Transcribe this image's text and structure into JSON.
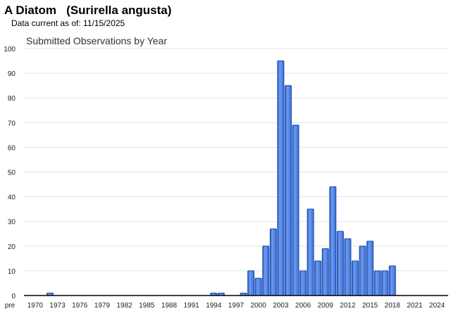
{
  "header": {
    "title": "A Diatom   (Surirella angusta)",
    "data_current": "Data current as of: 11/15/2025"
  },
  "chart_data": {
    "type": "bar",
    "title": "Submitted Observations by Year",
    "xlabel": "",
    "ylabel": "",
    "ylim": [
      0,
      100
    ],
    "yticks": [
      0,
      10,
      20,
      30,
      40,
      50,
      60,
      70,
      80,
      90,
      100
    ],
    "grid": true,
    "categories": [
      "pre",
      1970,
      1971,
      1972,
      1973,
      1974,
      1975,
      1976,
      1977,
      1978,
      1979,
      1980,
      1981,
      1982,
      1983,
      1984,
      1985,
      1986,
      1987,
      1988,
      1989,
      1990,
      1991,
      1992,
      1993,
      1994,
      1995,
      1996,
      1997,
      1998,
      1999,
      2000,
      2001,
      2002,
      2003,
      2004,
      2005,
      2006,
      2007,
      2008,
      2009,
      2010,
      2011,
      2012,
      2013,
      2014,
      2015,
      2016,
      2017,
      2018,
      2019,
      2020,
      2021,
      2022,
      2023,
      2024,
      2025
    ],
    "values": [
      0,
      0,
      0,
      1,
      0,
      0,
      0,
      0,
      0,
      0,
      0,
      0,
      0,
      0,
      0,
      0,
      0,
      0,
      0,
      0,
      0,
      0,
      0,
      0,
      0,
      1,
      1,
      0,
      0,
      1,
      10,
      7,
      20,
      27,
      95,
      85,
      69,
      10,
      35,
      14,
      19,
      44,
      26,
      23,
      14,
      20,
      22,
      10,
      10,
      12,
      0,
      0,
      0,
      0,
      0,
      0,
      0
    ],
    "xtick_labels": [
      "pre",
      "1970",
      "1973",
      "1976",
      "1979",
      "1982",
      "1985",
      "1988",
      "1991",
      "1994",
      "1997",
      "2000",
      "2003",
      "2006",
      "2009",
      "2012",
      "2015",
      "2018",
      "2021",
      "2024"
    ],
    "bar_color": "#3f74d8",
    "bar_border": "#1a44a8"
  }
}
